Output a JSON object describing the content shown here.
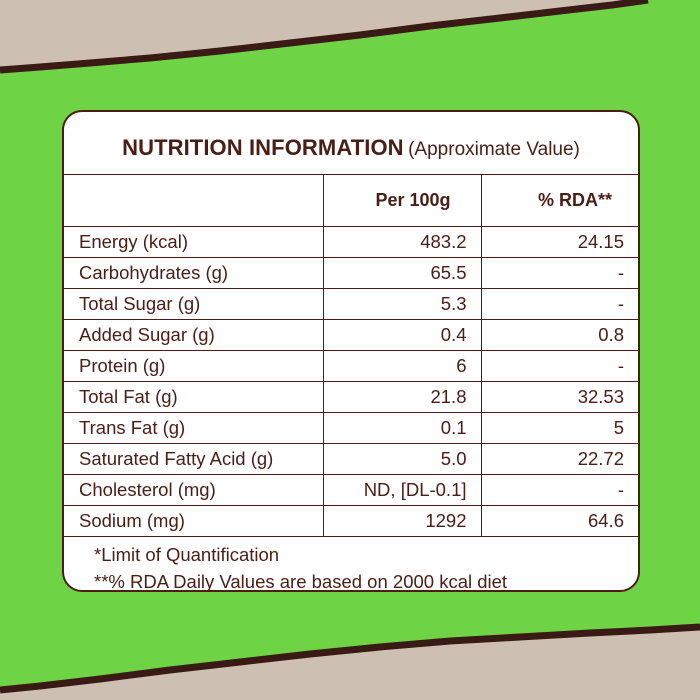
{
  "colors": {
    "background_green": "#6fd445",
    "kraft_paper": "#cdbfb2",
    "brown_text": "#4a1d15",
    "dark_stroke": "#3a1a14",
    "card_white": "#ffffff"
  },
  "panel": {
    "title": "NUTRITION INFORMATION",
    "subtitle": "(Approximate Value)"
  },
  "table": {
    "headers": [
      "",
      "Per 100g",
      "% RDA**"
    ],
    "rows": [
      {
        "label": "Energy (kcal)",
        "per100g": "483.2",
        "rda": "24.15"
      },
      {
        "label": "Carbohydrates (g)",
        "per100g": "65.5",
        "rda": "-"
      },
      {
        "label": "Total Sugar (g)",
        "per100g": "5.3",
        "rda": "-"
      },
      {
        "label": "Added Sugar (g)",
        "per100g": "0.4",
        "rda": "0.8"
      },
      {
        "label": "Protein (g)",
        "per100g": "6",
        "rda": "-"
      },
      {
        "label": "Total Fat (g)",
        "per100g": "21.8",
        "rda": "32.53"
      },
      {
        "label": "Trans Fat (g)",
        "per100g": "0.1",
        "rda": "5"
      },
      {
        "label": "Saturated Fatty Acid (g)",
        "per100g": "5.0",
        "rda": "22.72"
      },
      {
        "label": "Cholesterol (mg)",
        "per100g": "ND, [DL-0.1]",
        "rda": "-"
      },
      {
        "label": "Sodium (mg)",
        "per100g": "1292",
        "rda": "64.6"
      }
    ]
  },
  "footnotes": {
    "loq": "*Limit of Quantification",
    "rda": "**% RDA Daily Values are based on 2000 kcal diet"
  }
}
